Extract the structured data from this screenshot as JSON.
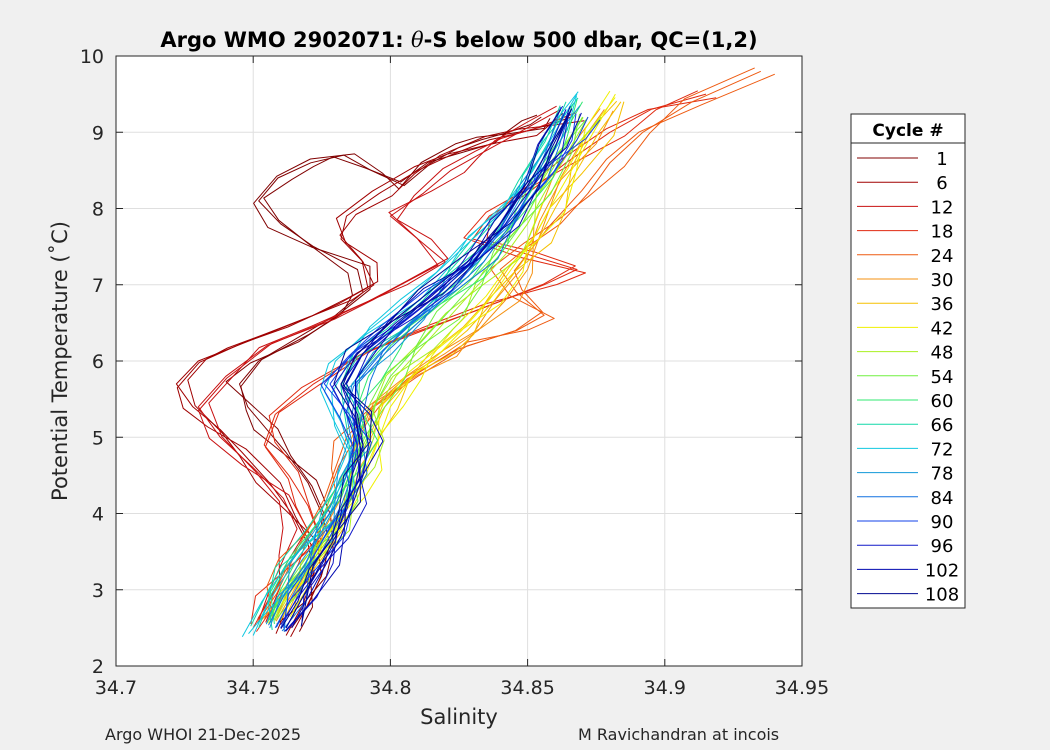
{
  "chart_data": {
    "type": "line",
    "title": "Argo WMO 2902071: θ-S below 500 dbar,  QC=(1,2)",
    "title_parts": {
      "prefix": "Argo WMO 2902071: ",
      "theta": "θ",
      "suffix": "-S below 500 dbar,  QC=(1,2)"
    },
    "xlabel": "Salinity",
    "ylabel": "Potential Temperature (˚C)",
    "xlim": [
      34.7,
      34.95
    ],
    "ylim": [
      2,
      10
    ],
    "xticks": [
      34.7,
      34.75,
      34.8,
      34.85,
      34.9,
      34.95
    ],
    "xtick_labels": [
      "34.7",
      "34.75",
      "34.8",
      "34.85",
      "34.9",
      "34.95"
    ],
    "yticks": [
      2,
      3,
      4,
      5,
      6,
      7,
      8,
      9,
      10
    ],
    "ytick_labels": [
      "2",
      "3",
      "4",
      "5",
      "6",
      "7",
      "8",
      "9",
      "10"
    ],
    "grid": true,
    "legend": {
      "title": "Cycle #",
      "position": "right",
      "entries": [
        {
          "label": "1",
          "color": "#800000"
        },
        {
          "label": "6",
          "color": "#a00000"
        },
        {
          "label": "12",
          "color": "#c81010"
        },
        {
          "label": "18",
          "color": "#e02a10"
        },
        {
          "label": "24",
          "color": "#ee5a10"
        },
        {
          "label": "30",
          "color": "#f59010"
        },
        {
          "label": "36",
          "color": "#f5c000"
        },
        {
          "label": "42",
          "color": "#f0f000"
        },
        {
          "label": "48",
          "color": "#aaf020"
        },
        {
          "label": "54",
          "color": "#70f040"
        },
        {
          "label": "60",
          "color": "#30e870"
        },
        {
          "label": "66",
          "color": "#10d8a8"
        },
        {
          "label": "72",
          "color": "#10c8e0"
        },
        {
          "label": "78",
          "color": "#1098d8"
        },
        {
          "label": "84",
          "color": "#1070e0"
        },
        {
          "label": "90",
          "color": "#1040e8"
        },
        {
          "label": "96",
          "color": "#1018c8"
        },
        {
          "label": "102",
          "color": "#0008b0"
        },
        {
          "label": "108",
          "color": "#000890"
        }
      ]
    },
    "series": [
      {
        "name": "1",
        "color": "#800000",
        "s": [
          34.764,
          34.77,
          34.775,
          34.778,
          34.775,
          34.77,
          34.762,
          34.755,
          34.748,
          34.745,
          34.752,
          34.766,
          34.78,
          34.79,
          34.788,
          34.772,
          34.76,
          34.752,
          34.759,
          34.771,
          34.783,
          34.793,
          34.805,
          34.815,
          34.825,
          34.833,
          34.843,
          34.851,
          34.855
        ],
        "t": [
          2.5,
          2.8,
          3.2,
          3.6,
          4.0,
          4.4,
          4.8,
          5.1,
          5.4,
          5.7,
          6.0,
          6.3,
          6.6,
          6.9,
          7.2,
          7.5,
          7.8,
          8.1,
          8.4,
          8.6,
          8.7,
          8.5,
          8.3,
          8.6,
          8.8,
          8.9,
          9.0,
          9.1,
          9.2
        ]
      },
      {
        "name": "6",
        "color": "#a00000",
        "s": [
          34.762,
          34.768,
          34.772,
          34.77,
          34.764,
          34.756,
          34.746,
          34.738,
          34.728,
          34.722,
          34.73,
          34.744,
          34.758,
          34.772,
          34.786,
          34.794,
          34.79,
          34.782,
          34.784,
          34.796,
          34.81,
          34.822,
          34.836,
          34.848,
          34.858,
          34.866
        ],
        "t": [
          2.4,
          2.8,
          3.2,
          3.6,
          4.0,
          4.4,
          4.8,
          5.1,
          5.4,
          5.7,
          6.0,
          6.2,
          6.4,
          6.6,
          6.8,
          7.0,
          7.3,
          7.6,
          7.9,
          8.2,
          8.5,
          8.7,
          8.9,
          9.0,
          9.1,
          9.2
        ]
      },
      {
        "name": "12",
        "color": "#c81010",
        "s": [
          34.752,
          34.756,
          34.761,
          34.766,
          34.761,
          34.75,
          34.738,
          34.73,
          34.74,
          34.755,
          34.775,
          34.793,
          34.806,
          34.82,
          34.81,
          34.8,
          34.812,
          34.822,
          34.832,
          34.842,
          34.852,
          34.862
        ],
        "t": [
          2.6,
          3.0,
          3.4,
          3.8,
          4.2,
          4.6,
          5.0,
          5.4,
          5.8,
          6.2,
          6.5,
          6.8,
          7.0,
          7.3,
          7.6,
          7.9,
          8.2,
          8.5,
          8.7,
          8.9,
          9.1,
          9.3
        ]
      },
      {
        "name": "18",
        "color": "#e02a10",
        "s": [
          34.75,
          34.756,
          34.764,
          34.774,
          34.77,
          34.763,
          34.754,
          34.758,
          34.772,
          34.79,
          34.812,
          34.834,
          34.856,
          34.868,
          34.85,
          34.83,
          34.836,
          34.85,
          34.864,
          34.88,
          34.895,
          34.915
        ],
        "t": [
          2.5,
          2.9,
          3.3,
          3.7,
          4.1,
          4.5,
          4.9,
          5.3,
          5.7,
          6.1,
          6.4,
          6.7,
          7.0,
          7.2,
          7.4,
          7.6,
          7.9,
          8.2,
          8.6,
          9.0,
          9.3,
          9.5
        ]
      },
      {
        "name": "24",
        "color": "#ee5a10",
        "s": [
          34.754,
          34.758,
          34.764,
          34.77,
          34.776,
          34.78,
          34.784,
          34.794,
          34.81,
          34.828,
          34.846,
          34.856,
          34.846,
          34.84,
          34.85,
          34.862,
          34.872,
          34.88,
          34.892,
          34.91,
          34.935
        ],
        "t": [
          2.6,
          3.0,
          3.4,
          3.8,
          4.2,
          4.6,
          5.0,
          5.4,
          5.8,
          6.2,
          6.4,
          6.6,
          6.9,
          7.2,
          7.5,
          7.8,
          8.2,
          8.6,
          9.0,
          9.4,
          9.8
        ]
      },
      {
        "name": "30",
        "color": "#f59010",
        "s": [
          34.758,
          34.763,
          34.77,
          34.776,
          34.782,
          34.786,
          34.789,
          34.794,
          34.806,
          34.82,
          34.832,
          34.842,
          34.85,
          34.856,
          34.862,
          34.87,
          34.878
        ],
        "t": [
          2.6,
          3.0,
          3.4,
          3.8,
          4.2,
          4.6,
          5.0,
          5.4,
          5.8,
          6.1,
          6.4,
          6.8,
          7.2,
          7.8,
          8.4,
          8.9,
          9.3
        ]
      },
      {
        "name": "36",
        "color": "#f5c000",
        "s": [
          34.76,
          34.766,
          34.772,
          34.78,
          34.786,
          34.79,
          34.793,
          34.798,
          34.808,
          34.818,
          34.828,
          34.838,
          34.846,
          34.854,
          34.86,
          34.868,
          34.876,
          34.884
        ],
        "t": [
          2.6,
          3.0,
          3.4,
          3.8,
          4.2,
          4.6,
          5.0,
          5.4,
          5.8,
          6.1,
          6.4,
          6.8,
          7.2,
          7.6,
          8.0,
          8.5,
          9.0,
          9.4
        ]
      },
      {
        "name": "42",
        "color": "#f0f000",
        "s": [
          34.76,
          34.766,
          34.774,
          34.782,
          34.788,
          34.792,
          34.796,
          34.8,
          34.808,
          34.818,
          34.826,
          34.836,
          34.844,
          34.852,
          34.858,
          34.866,
          34.874,
          34.882
        ],
        "t": [
          2.6,
          3.0,
          3.4,
          3.8,
          4.2,
          4.6,
          5.0,
          5.4,
          5.8,
          6.1,
          6.4,
          6.8,
          7.2,
          7.6,
          8.0,
          8.5,
          9.0,
          9.5
        ]
      },
      {
        "name": "48",
        "color": "#aaf020",
        "s": [
          34.758,
          34.764,
          34.772,
          34.78,
          34.786,
          34.79,
          34.794,
          34.796,
          34.802,
          34.812,
          34.822,
          34.832,
          34.842,
          34.85,
          34.856,
          34.864,
          34.872
        ],
        "t": [
          2.6,
          3.0,
          3.4,
          3.8,
          4.2,
          4.6,
          5.0,
          5.4,
          5.8,
          6.2,
          6.6,
          7.0,
          7.4,
          7.8,
          8.2,
          8.7,
          9.2
        ]
      },
      {
        "name": "54",
        "color": "#70f040",
        "s": [
          34.757,
          34.762,
          34.77,
          34.778,
          34.784,
          34.788,
          34.792,
          34.794,
          34.8,
          34.81,
          34.82,
          34.83,
          34.84,
          34.848,
          34.854,
          34.862,
          34.87
        ],
        "t": [
          2.6,
          3.0,
          3.4,
          3.8,
          4.2,
          4.6,
          5.0,
          5.4,
          5.8,
          6.2,
          6.6,
          7.0,
          7.4,
          7.8,
          8.2,
          8.7,
          9.2
        ]
      },
      {
        "name": "60",
        "color": "#30e870",
        "s": [
          34.756,
          34.76,
          34.766,
          34.774,
          34.782,
          34.786,
          34.79,
          34.788,
          34.792,
          34.8,
          34.81,
          34.82,
          34.83,
          34.838,
          34.846,
          34.854,
          34.862,
          34.87
        ],
        "t": [
          2.6,
          3.0,
          3.4,
          3.8,
          4.2,
          4.6,
          5.0,
          5.4,
          5.8,
          6.2,
          6.5,
          6.8,
          7.1,
          7.5,
          7.9,
          8.4,
          8.9,
          9.4
        ]
      },
      {
        "name": "66",
        "color": "#10d8a8",
        "s": [
          34.752,
          34.756,
          34.762,
          34.77,
          34.778,
          34.784,
          34.788,
          34.785,
          34.784,
          34.79,
          34.8,
          34.812,
          34.822,
          34.832,
          34.842,
          34.85,
          34.858,
          34.864
        ],
        "t": [
          2.5,
          2.9,
          3.3,
          3.7,
          4.1,
          4.5,
          4.9,
          5.3,
          5.7,
          6.1,
          6.4,
          6.8,
          7.2,
          7.6,
          8.0,
          8.4,
          8.9,
          9.4
        ]
      },
      {
        "name": "72",
        "color": "#10c8e0",
        "s": [
          34.75,
          34.755,
          34.762,
          34.77,
          34.778,
          34.782,
          34.786,
          34.782,
          34.776,
          34.78,
          34.792,
          34.806,
          34.818,
          34.83,
          34.842,
          34.852,
          34.86,
          34.868
        ],
        "t": [
          2.4,
          2.8,
          3.2,
          3.6,
          4.0,
          4.4,
          4.8,
          5.2,
          5.6,
          6.0,
          6.4,
          6.8,
          7.2,
          7.6,
          8.0,
          8.5,
          9.0,
          9.5
        ]
      },
      {
        "name": "78",
        "color": "#1098d8",
        "s": [
          34.756,
          34.76,
          34.766,
          34.774,
          34.78,
          34.784,
          34.786,
          34.784,
          34.786,
          34.796,
          34.808,
          34.82,
          34.832,
          34.842,
          34.85,
          34.858,
          34.864
        ],
        "t": [
          2.5,
          2.9,
          3.3,
          3.7,
          4.1,
          4.5,
          4.9,
          5.3,
          5.7,
          6.1,
          6.5,
          6.9,
          7.3,
          7.8,
          8.3,
          8.8,
          9.3
        ]
      },
      {
        "name": "84",
        "color": "#1070e0",
        "s": [
          34.758,
          34.764,
          34.77,
          34.776,
          34.782,
          34.786,
          34.788,
          34.786,
          34.788,
          34.798,
          34.81,
          34.822,
          34.834,
          34.844,
          34.852,
          34.858,
          34.866
        ],
        "t": [
          2.5,
          2.9,
          3.3,
          3.7,
          4.1,
          4.5,
          4.9,
          5.3,
          5.7,
          6.1,
          6.5,
          6.9,
          7.3,
          7.8,
          8.3,
          8.8,
          9.3
        ]
      },
      {
        "name": "90",
        "color": "#1040e8",
        "s": [
          34.76,
          34.766,
          34.772,
          34.778,
          34.784,
          34.786,
          34.788,
          34.784,
          34.778,
          34.786,
          34.8,
          34.814,
          34.828,
          34.84,
          34.85,
          34.86,
          34.868,
          34.872
        ],
        "t": [
          2.5,
          2.9,
          3.3,
          3.7,
          4.1,
          4.5,
          4.9,
          5.3,
          5.7,
          6.1,
          6.5,
          6.9,
          7.3,
          7.7,
          8.1,
          8.5,
          8.9,
          9.2
        ]
      },
      {
        "name": "96",
        "color": "#1018c8",
        "s": [
          34.762,
          34.768,
          34.776,
          34.782,
          34.786,
          34.788,
          34.79,
          34.786,
          34.782,
          34.79,
          34.804,
          34.818,
          34.83,
          34.84,
          34.85,
          34.858,
          34.864
        ],
        "t": [
          2.5,
          2.9,
          3.3,
          3.7,
          4.1,
          4.5,
          4.9,
          5.3,
          5.7,
          6.1,
          6.5,
          6.9,
          7.3,
          7.8,
          8.3,
          8.8,
          9.3
        ]
      },
      {
        "name": "102",
        "color": "#0008b0",
        "s": [
          34.764,
          34.77,
          34.776,
          34.782,
          34.786,
          34.79,
          34.792,
          34.79,
          34.784,
          34.79,
          34.802,
          34.816,
          34.83,
          34.842,
          34.852,
          34.86,
          34.866
        ],
        "t": [
          2.5,
          2.9,
          3.3,
          3.7,
          4.1,
          4.5,
          4.9,
          5.3,
          5.7,
          6.1,
          6.5,
          6.9,
          7.3,
          7.8,
          8.3,
          8.8,
          9.3
        ]
      },
      {
        "name": "108",
        "color": "#000890",
        "s": [
          34.762,
          34.768,
          34.774,
          34.78,
          34.784,
          34.786,
          34.79,
          34.788,
          34.782,
          34.788,
          34.8,
          34.814,
          34.828,
          34.84,
          34.85,
          34.858,
          34.866
        ],
        "t": [
          2.5,
          2.9,
          3.3,
          3.7,
          4.1,
          4.5,
          4.9,
          5.3,
          5.7,
          6.1,
          6.5,
          6.9,
          7.3,
          7.8,
          8.3,
          8.8,
          9.3
        ]
      }
    ]
  },
  "footer": {
    "left": "Argo WHOI 21-Dec-2025",
    "right": "M Ravichandran at incois"
  }
}
